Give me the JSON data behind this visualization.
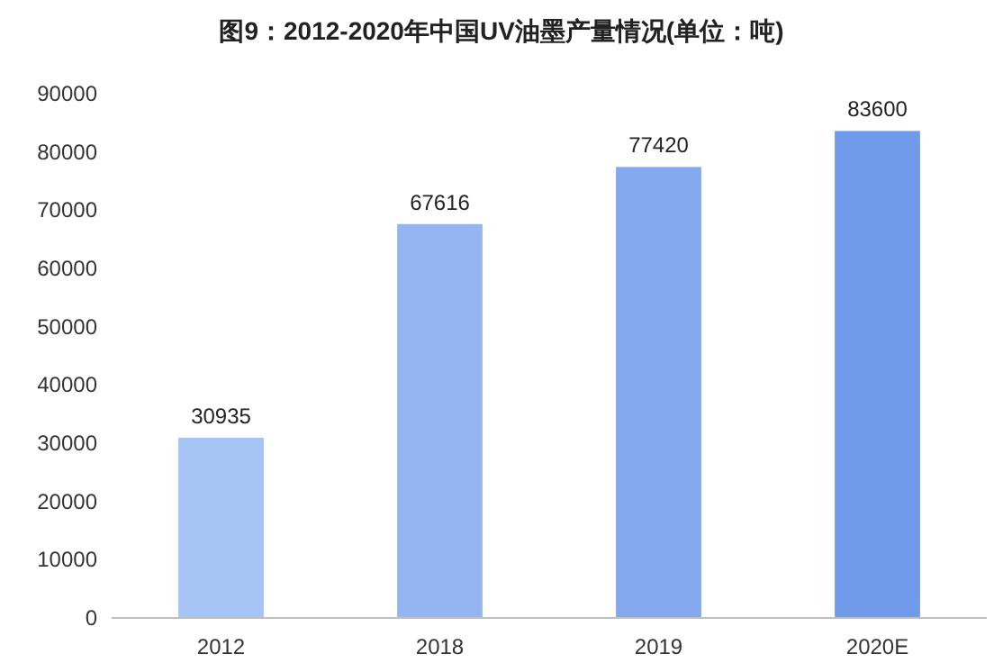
{
  "chart_data": {
    "type": "bar",
    "title": "图9：2012-2020年中国UV油墨产量情况(单位：吨)",
    "categories": [
      "2012",
      "2018",
      "2019",
      "2020E"
    ],
    "values": [
      30935,
      67616,
      77420,
      83600
    ],
    "colors": [
      "#a6c3f5",
      "#94b5f1",
      "#83a8ee",
      "#709aea"
    ],
    "ylim": [
      0,
      90000
    ],
    "yticks": [
      0,
      10000,
      20000,
      30000,
      40000,
      50000,
      60000,
      70000,
      80000,
      90000
    ],
    "data_labels": true
  }
}
